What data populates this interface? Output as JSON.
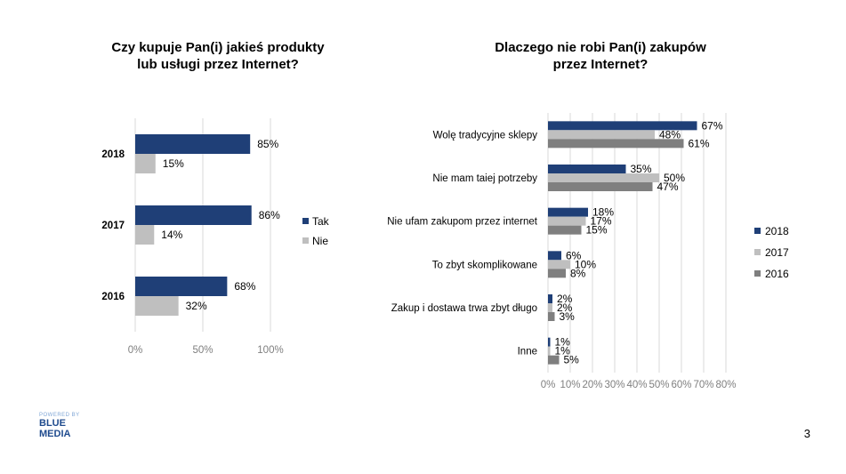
{
  "page_number": "3",
  "logo": {
    "powered_by": "POWERED BY",
    "line1": "BLUE",
    "line2": "MEDIA"
  },
  "colors": {
    "tak": "#1f3f77",
    "nie": "#bfbfbf",
    "c2018": "#1f3f77",
    "c2017": "#bfbfbf",
    "c2016": "#7f7f7f",
    "grid": "#d9d9d9"
  },
  "chart_data": [
    {
      "type": "bar",
      "orientation": "horizontal",
      "title": "Czy kupuje Pan(i) jakieś produkty lub usługi przez Internet?",
      "title_lines": [
        "Czy kupuje Pan(i) jakieś produkty",
        "lub usługi przez Internet?"
      ],
      "categories": [
        "2018",
        "2017",
        "2016"
      ],
      "series": [
        {
          "name": "Tak",
          "values": [
            85,
            86,
            68
          ],
          "labels": [
            "85%",
            "86%",
            "68%"
          ]
        },
        {
          "name": "Nie",
          "values": [
            15,
            14,
            32
          ],
          "labels": [
            "15%",
            "14%",
            "32%"
          ]
        }
      ],
      "xlim": [
        0,
        100
      ],
      "xticks": [
        "0%",
        "50%",
        "100%"
      ],
      "grid": true,
      "legend": "right"
    },
    {
      "type": "bar",
      "orientation": "horizontal",
      "title": "Dlaczego nie robi Pan(i) zakupów przez Internet?",
      "title_lines": [
        "Dlaczego nie robi Pan(i) zakupów",
        "przez Internet?"
      ],
      "categories": [
        "Wolę tradycyjne sklepy",
        "Nie mam taiej potrzeby",
        "Nie ufam zakupom przez internet",
        "To zbyt skomplikowane",
        "Zakup i dostawa trwa zbyt długo",
        "Inne"
      ],
      "series": [
        {
          "name": "2018",
          "values": [
            67,
            35,
            18,
            6,
            2,
            1
          ],
          "labels": [
            "67%",
            "35%",
            "18%",
            "6%",
            "2%",
            "1%"
          ]
        },
        {
          "name": "2017",
          "values": [
            48,
            50,
            17,
            10,
            2,
            1
          ],
          "labels": [
            "48%",
            "50%",
            "17%",
            "10%",
            "2%",
            "1%"
          ]
        },
        {
          "name": "2016",
          "values": [
            61,
            47,
            15,
            8,
            3,
            5
          ],
          "labels": [
            "61%",
            "47%",
            "15%",
            "8%",
            "3%",
            "5%"
          ]
        }
      ],
      "xlim": [
        0,
        80
      ],
      "xticks": [
        "0%",
        "10%",
        "20%",
        "30%",
        "40%",
        "50%",
        "60%",
        "70%",
        "80%"
      ],
      "grid": true,
      "legend": "right"
    }
  ]
}
